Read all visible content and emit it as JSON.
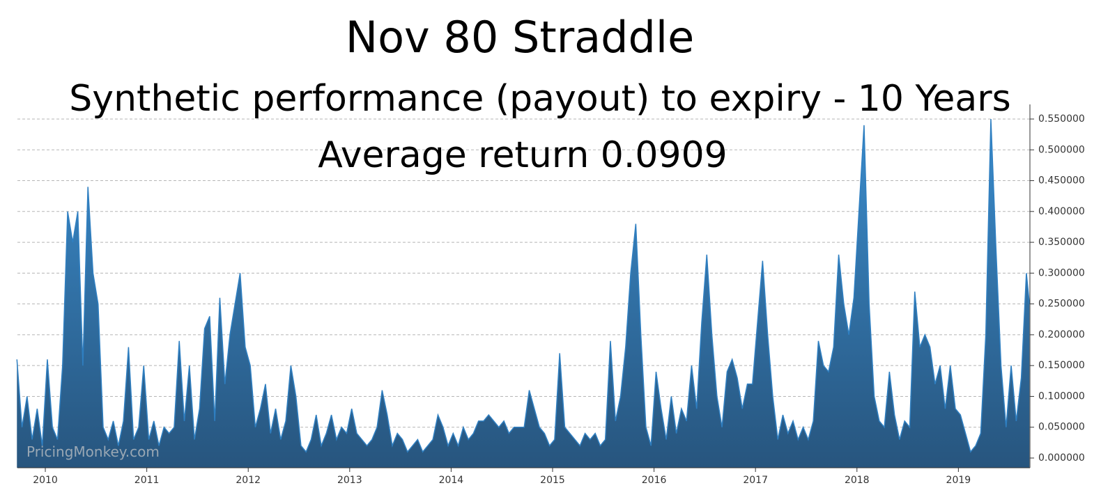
{
  "chart_data": {
    "type": "area",
    "title": "Nov 80 Straddle",
    "subtitle": "Synthetic performance (payout) to expiry - 10 Years",
    "annotation": "Average return 0.0909",
    "watermark": "PricingMonkey.com",
    "color": "#2f7fc1",
    "grid": true,
    "xlim": [
      2009.725,
      2019.705
    ],
    "xticks": [
      2010,
      2011,
      2012,
      2013,
      2014,
      2015,
      2016,
      2017,
      2018,
      2019
    ],
    "ylim": [
      -0.0158,
      0.5737
    ],
    "yticks": [
      {
        "value": 0,
        "label": "0.000000"
      },
      {
        "value": 0.05,
        "label": "0.050000"
      },
      {
        "value": 0.1,
        "label": "0.100000"
      },
      {
        "value": 0.15,
        "label": "0.150000"
      },
      {
        "value": 0.2,
        "label": "0.200000"
      },
      {
        "value": 0.25,
        "label": "0.250000"
      },
      {
        "value": 0.3,
        "label": "0.300000"
      },
      {
        "value": 0.35,
        "label": "0.350000"
      },
      {
        "value": 0.4,
        "label": "0.400000"
      },
      {
        "value": 0.45,
        "label": "0.450000"
      },
      {
        "value": 0.5,
        "label": "0.500000"
      },
      {
        "value": 0.55,
        "label": "0.550000"
      }
    ],
    "x": [
      2009.72,
      2009.77,
      2009.82,
      2009.87,
      2009.92,
      2009.97,
      2010.02,
      2010.07,
      2010.12,
      2010.17,
      2010.22,
      2010.27,
      2010.32,
      2010.37,
      2010.42,
      2010.47,
      2010.52,
      2010.57,
      2010.62,
      2010.67,
      2010.72,
      2010.77,
      2010.82,
      2010.87,
      2010.92,
      2010.97,
      2011.02,
      2011.07,
      2011.12,
      2011.17,
      2011.22,
      2011.27,
      2011.32,
      2011.37,
      2011.42,
      2011.47,
      2011.52,
      2011.57,
      2011.62,
      2011.67,
      2011.72,
      2011.77,
      2011.82,
      2011.87,
      2011.92,
      2011.97,
      2012.02,
      2012.07,
      2012.12,
      2012.17,
      2012.22,
      2012.27,
      2012.32,
      2012.37,
      2012.42,
      2012.47,
      2012.52,
      2012.57,
      2012.62,
      2012.67,
      2012.72,
      2012.77,
      2012.82,
      2012.87,
      2012.92,
      2012.97,
      2013.02,
      2013.07,
      2013.12,
      2013.17,
      2013.22,
      2013.27,
      2013.32,
      2013.37,
      2013.42,
      2013.47,
      2013.52,
      2013.57,
      2013.62,
      2013.67,
      2013.72,
      2013.77,
      2013.82,
      2013.87,
      2013.92,
      2013.97,
      2014.02,
      2014.07,
      2014.12,
      2014.17,
      2014.22,
      2014.27,
      2014.32,
      2014.37,
      2014.42,
      2014.47,
      2014.52,
      2014.57,
      2014.62,
      2014.67,
      2014.72,
      2014.77,
      2014.82,
      2014.87,
      2014.92,
      2014.97,
      2015.02,
      2015.07,
      2015.12,
      2015.17,
      2015.22,
      2015.27,
      2015.32,
      2015.37,
      2015.42,
      2015.47,
      2015.52,
      2015.57,
      2015.62,
      2015.67,
      2015.72,
      2015.77,
      2015.82,
      2015.87,
      2015.92,
      2015.97,
      2016.02,
      2016.07,
      2016.12,
      2016.17,
      2016.22,
      2016.27,
      2016.32,
      2016.37,
      2016.42,
      2016.47,
      2016.52,
      2016.57,
      2016.62,
      2016.67,
      2016.72,
      2016.77,
      2016.82,
      2016.87,
      2016.92,
      2016.97,
      2017.02,
      2017.07,
      2017.12,
      2017.17,
      2017.22,
      2017.27,
      2017.32,
      2017.37,
      2017.42,
      2017.47,
      2017.52,
      2017.57,
      2017.62,
      2017.67,
      2017.72,
      2017.77,
      2017.82,
      2017.87,
      2017.92,
      2017.97,
      2018.02,
      2018.07,
      2018.12,
      2018.17,
      2018.22,
      2018.27,
      2018.32,
      2018.37,
      2018.42,
      2018.47,
      2018.52,
      2018.57,
      2018.62,
      2018.67,
      2018.72,
      2018.77,
      2018.82,
      2018.87,
      2018.92,
      2018.97,
      2019.02,
      2019.07,
      2019.12,
      2019.17,
      2019.22,
      2019.27,
      2019.32,
      2019.37,
      2019.42,
      2019.47,
      2019.52,
      2019.57,
      2019.62,
      2019.67,
      2019.7
    ],
    "values": [
      0.16,
      0.05,
      0.1,
      0.03,
      0.08,
      0.02,
      0.16,
      0.05,
      0.03,
      0.15,
      0.4,
      0.35,
      0.4,
      0.15,
      0.44,
      0.3,
      0.25,
      0.05,
      0.03,
      0.06,
      0.02,
      0.06,
      0.18,
      0.03,
      0.05,
      0.15,
      0.03,
      0.06,
      0.02,
      0.05,
      0.04,
      0.05,
      0.19,
      0.06,
      0.15,
      0.03,
      0.08,
      0.21,
      0.23,
      0.06,
      0.26,
      0.12,
      0.2,
      0.25,
      0.3,
      0.18,
      0.15,
      0.05,
      0.08,
      0.12,
      0.04,
      0.08,
      0.03,
      0.06,
      0.15,
      0.1,
      0.02,
      0.01,
      0.03,
      0.07,
      0.02,
      0.04,
      0.07,
      0.03,
      0.05,
      0.04,
      0.08,
      0.04,
      0.03,
      0.02,
      0.03,
      0.05,
      0.11,
      0.07,
      0.02,
      0.04,
      0.03,
      0.01,
      0.02,
      0.03,
      0.01,
      0.02,
      0.03,
      0.07,
      0.05,
      0.02,
      0.04,
      0.02,
      0.05,
      0.03,
      0.04,
      0.06,
      0.06,
      0.07,
      0.06,
      0.05,
      0.06,
      0.04,
      0.05,
      0.05,
      0.05,
      0.11,
      0.08,
      0.05,
      0.04,
      0.02,
      0.03,
      0.17,
      0.05,
      0.04,
      0.03,
      0.02,
      0.04,
      0.03,
      0.04,
      0.02,
      0.03,
      0.19,
      0.06,
      0.1,
      0.18,
      0.3,
      0.38,
      0.2,
      0.05,
      0.02,
      0.14,
      0.08,
      0.03,
      0.1,
      0.04,
      0.08,
      0.06,
      0.15,
      0.08,
      0.22,
      0.33,
      0.2,
      0.1,
      0.05,
      0.14,
      0.16,
      0.13,
      0.08,
      0.12,
      0.12,
      0.22,
      0.32,
      0.2,
      0.1,
      0.03,
      0.07,
      0.04,
      0.06,
      0.03,
      0.05,
      0.03,
      0.06,
      0.19,
      0.15,
      0.14,
      0.18,
      0.33,
      0.25,
      0.2,
      0.26,
      0.4,
      0.54,
      0.25,
      0.1,
      0.06,
      0.05,
      0.14,
      0.07,
      0.03,
      0.06,
      0.05,
      0.27,
      0.18,
      0.2,
      0.18,
      0.12,
      0.15,
      0.08,
      0.15,
      0.08,
      0.07,
      0.04,
      0.01,
      0.02,
      0.04,
      0.2,
      0.55,
      0.34,
      0.15,
      0.05,
      0.15,
      0.06,
      0.13,
      0.3,
      0.25
    ]
  }
}
